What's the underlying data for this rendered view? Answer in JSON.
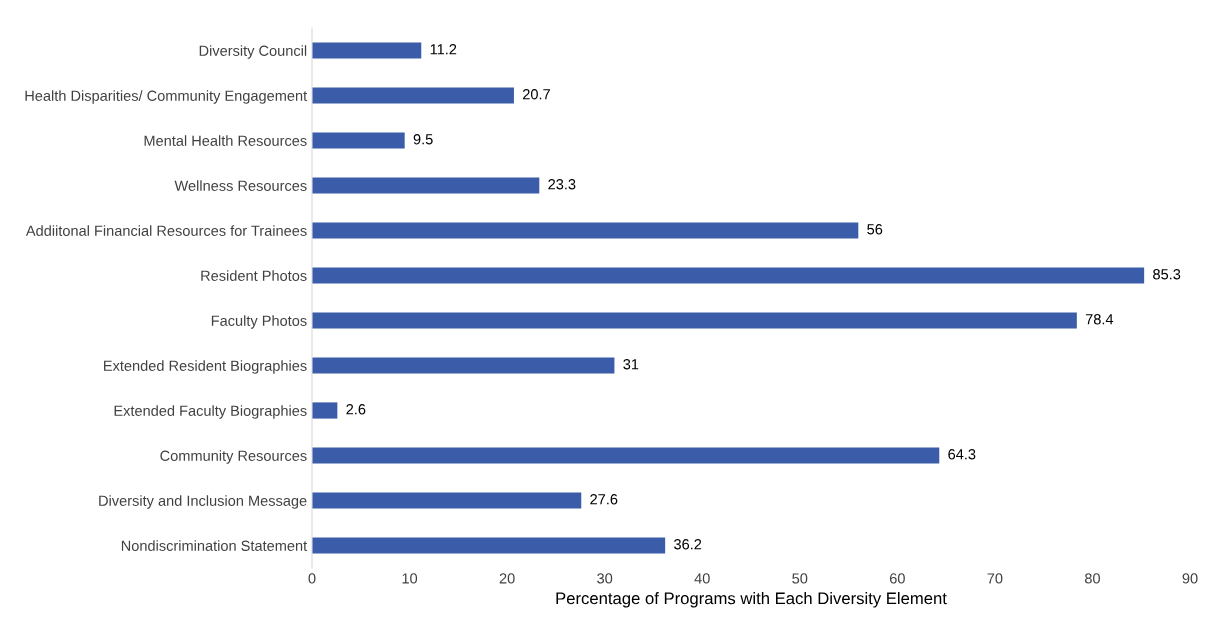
{
  "chart_data": {
    "type": "bar",
    "orientation": "horizontal",
    "xlabel": "Percentage of Programs with Each Diversity Element",
    "categories": [
      "Diversity Council",
      "Health Disparities/ Community Engagement",
      "Mental Health Resources",
      "Wellness Resources",
      "Addiitonal Financial Resources for Trainees",
      "Resident Photos",
      "Faculty Photos",
      "Extended Resident Biographies",
      "Extended Faculty Biographies",
      "Community Resources",
      "Diversity and Inclusion Message",
      "Nondiscrimination Statement"
    ],
    "values": [
      11.2,
      20.7,
      9.5,
      23.3,
      56,
      85.3,
      78.4,
      31,
      2.6,
      64.3,
      27.6,
      36.2
    ],
    "color": "#3b5ca8",
    "xlim": [
      0,
      90
    ],
    "xticks": [
      0,
      10,
      20,
      30,
      40,
      50,
      60,
      70,
      80,
      90
    ],
    "data_labels": true,
    "grid": false,
    "legend": false
  }
}
